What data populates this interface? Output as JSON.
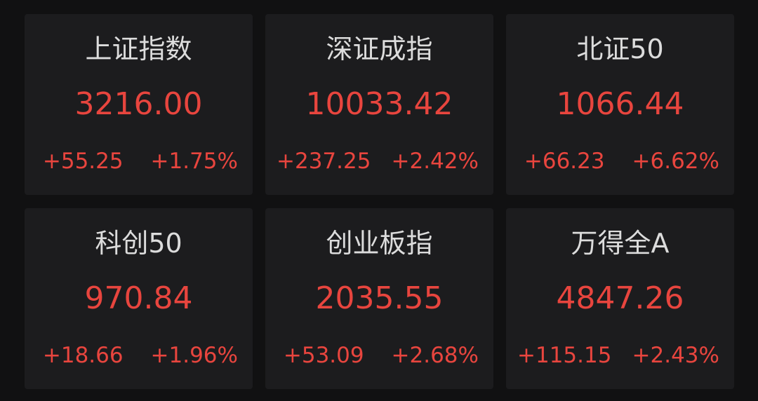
{
  "colors": {
    "up": "#e8453e",
    "background": "#111112",
    "card": "#1c1c1e",
    "name": "#dcdcdc"
  },
  "indices": [
    {
      "name": "上证指数",
      "value": "3216.00",
      "change": "+55.25",
      "pct": "+1.75%"
    },
    {
      "name": "深证成指",
      "value": "10033.42",
      "change": "+237.25",
      "pct": "+2.42%"
    },
    {
      "name": "北证50",
      "value": "1066.44",
      "change": "+66.23",
      "pct": "+6.62%"
    },
    {
      "name": "科创50",
      "value": "970.84",
      "change": "+18.66",
      "pct": "+1.96%"
    },
    {
      "name": "创业板指",
      "value": "2035.55",
      "change": "+53.09",
      "pct": "+2.68%"
    },
    {
      "name": "万得全A",
      "value": "4847.26",
      "change": "+115.15",
      "pct": "+2.43%"
    }
  ]
}
